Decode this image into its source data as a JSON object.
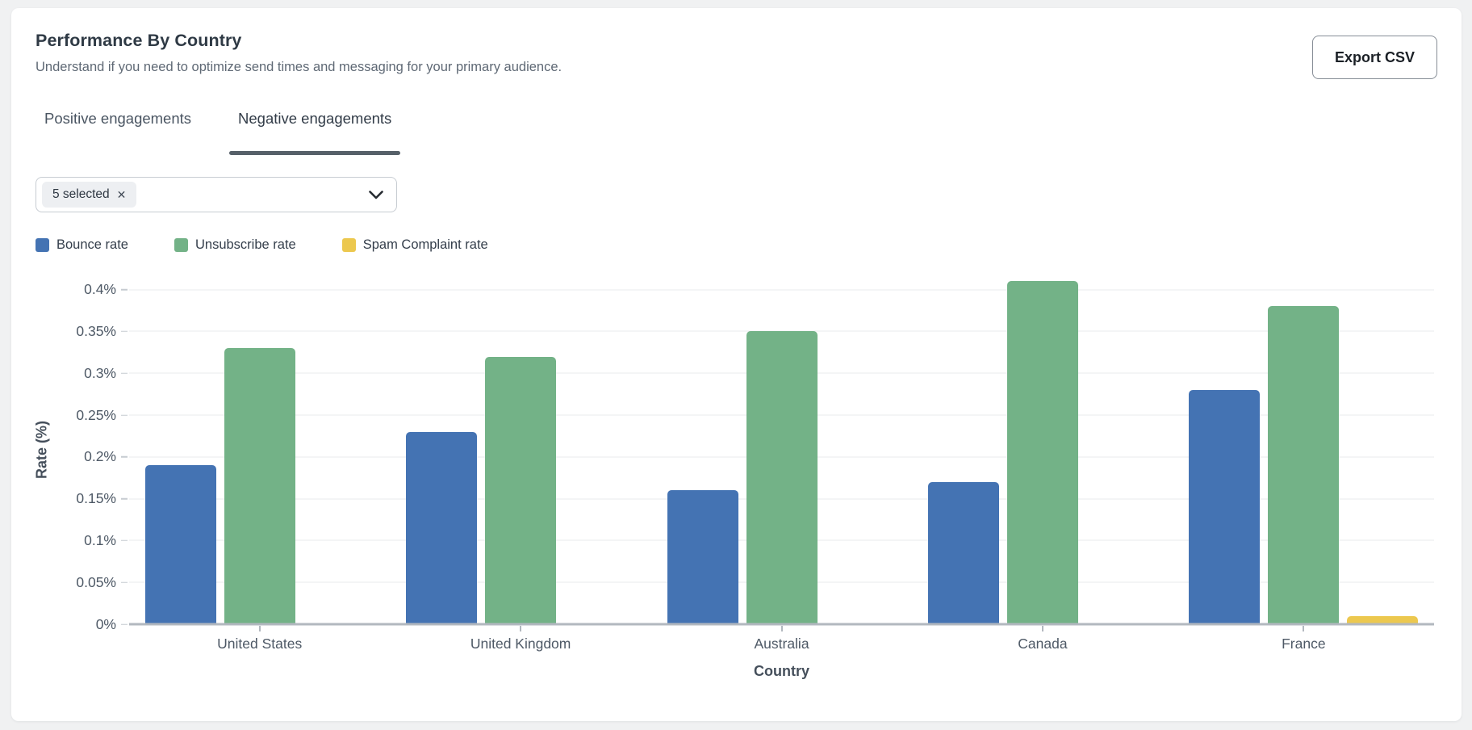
{
  "header": {
    "title": "Performance By Country",
    "subtitle": "Understand if you need to optimize send times and messaging for your primary audience.",
    "export_button": "Export CSV"
  },
  "tabs": [
    {
      "label": "Positive engagements",
      "active": false
    },
    {
      "label": "Negative engagements",
      "active": true
    }
  ],
  "filter": {
    "chip_label": "5 selected",
    "chip_close_icon": "✕"
  },
  "legend": [
    {
      "label": "Bounce rate",
      "color": "#4473b3"
    },
    {
      "label": "Unsubscribe rate",
      "color": "#73b287"
    },
    {
      "label": "Spam Complaint rate",
      "color": "#ecc84f"
    }
  ],
  "chart_data": {
    "type": "bar",
    "title": "Performance By Country",
    "xlabel": "Country",
    "ylabel": "Rate (%)",
    "categories": [
      "United States",
      "United Kingdom",
      "Australia",
      "Canada",
      "France"
    ],
    "series": [
      {
        "name": "Bounce rate",
        "color": "#4473b3",
        "values": [
          0.19,
          0.23,
          0.16,
          0.17,
          0.28
        ]
      },
      {
        "name": "Unsubscribe rate",
        "color": "#73b287",
        "values": [
          0.33,
          0.32,
          0.35,
          0.41,
          0.38
        ]
      },
      {
        "name": "Spam Complaint rate",
        "color": "#ecc84f",
        "values": [
          0,
          0,
          0,
          0,
          0.01
        ]
      }
    ],
    "y_ticks": [
      "0%",
      "0.05%",
      "0.1%",
      "0.15%",
      "0.2%",
      "0.25%",
      "0.3%",
      "0.35%",
      "0.4%"
    ],
    "y_tick_values": [
      0,
      0.05,
      0.1,
      0.15,
      0.2,
      0.25,
      0.3,
      0.35,
      0.4
    ],
    "ylim": [
      0,
      0.417
    ],
    "grid": true,
    "legend_position": "top-left"
  }
}
